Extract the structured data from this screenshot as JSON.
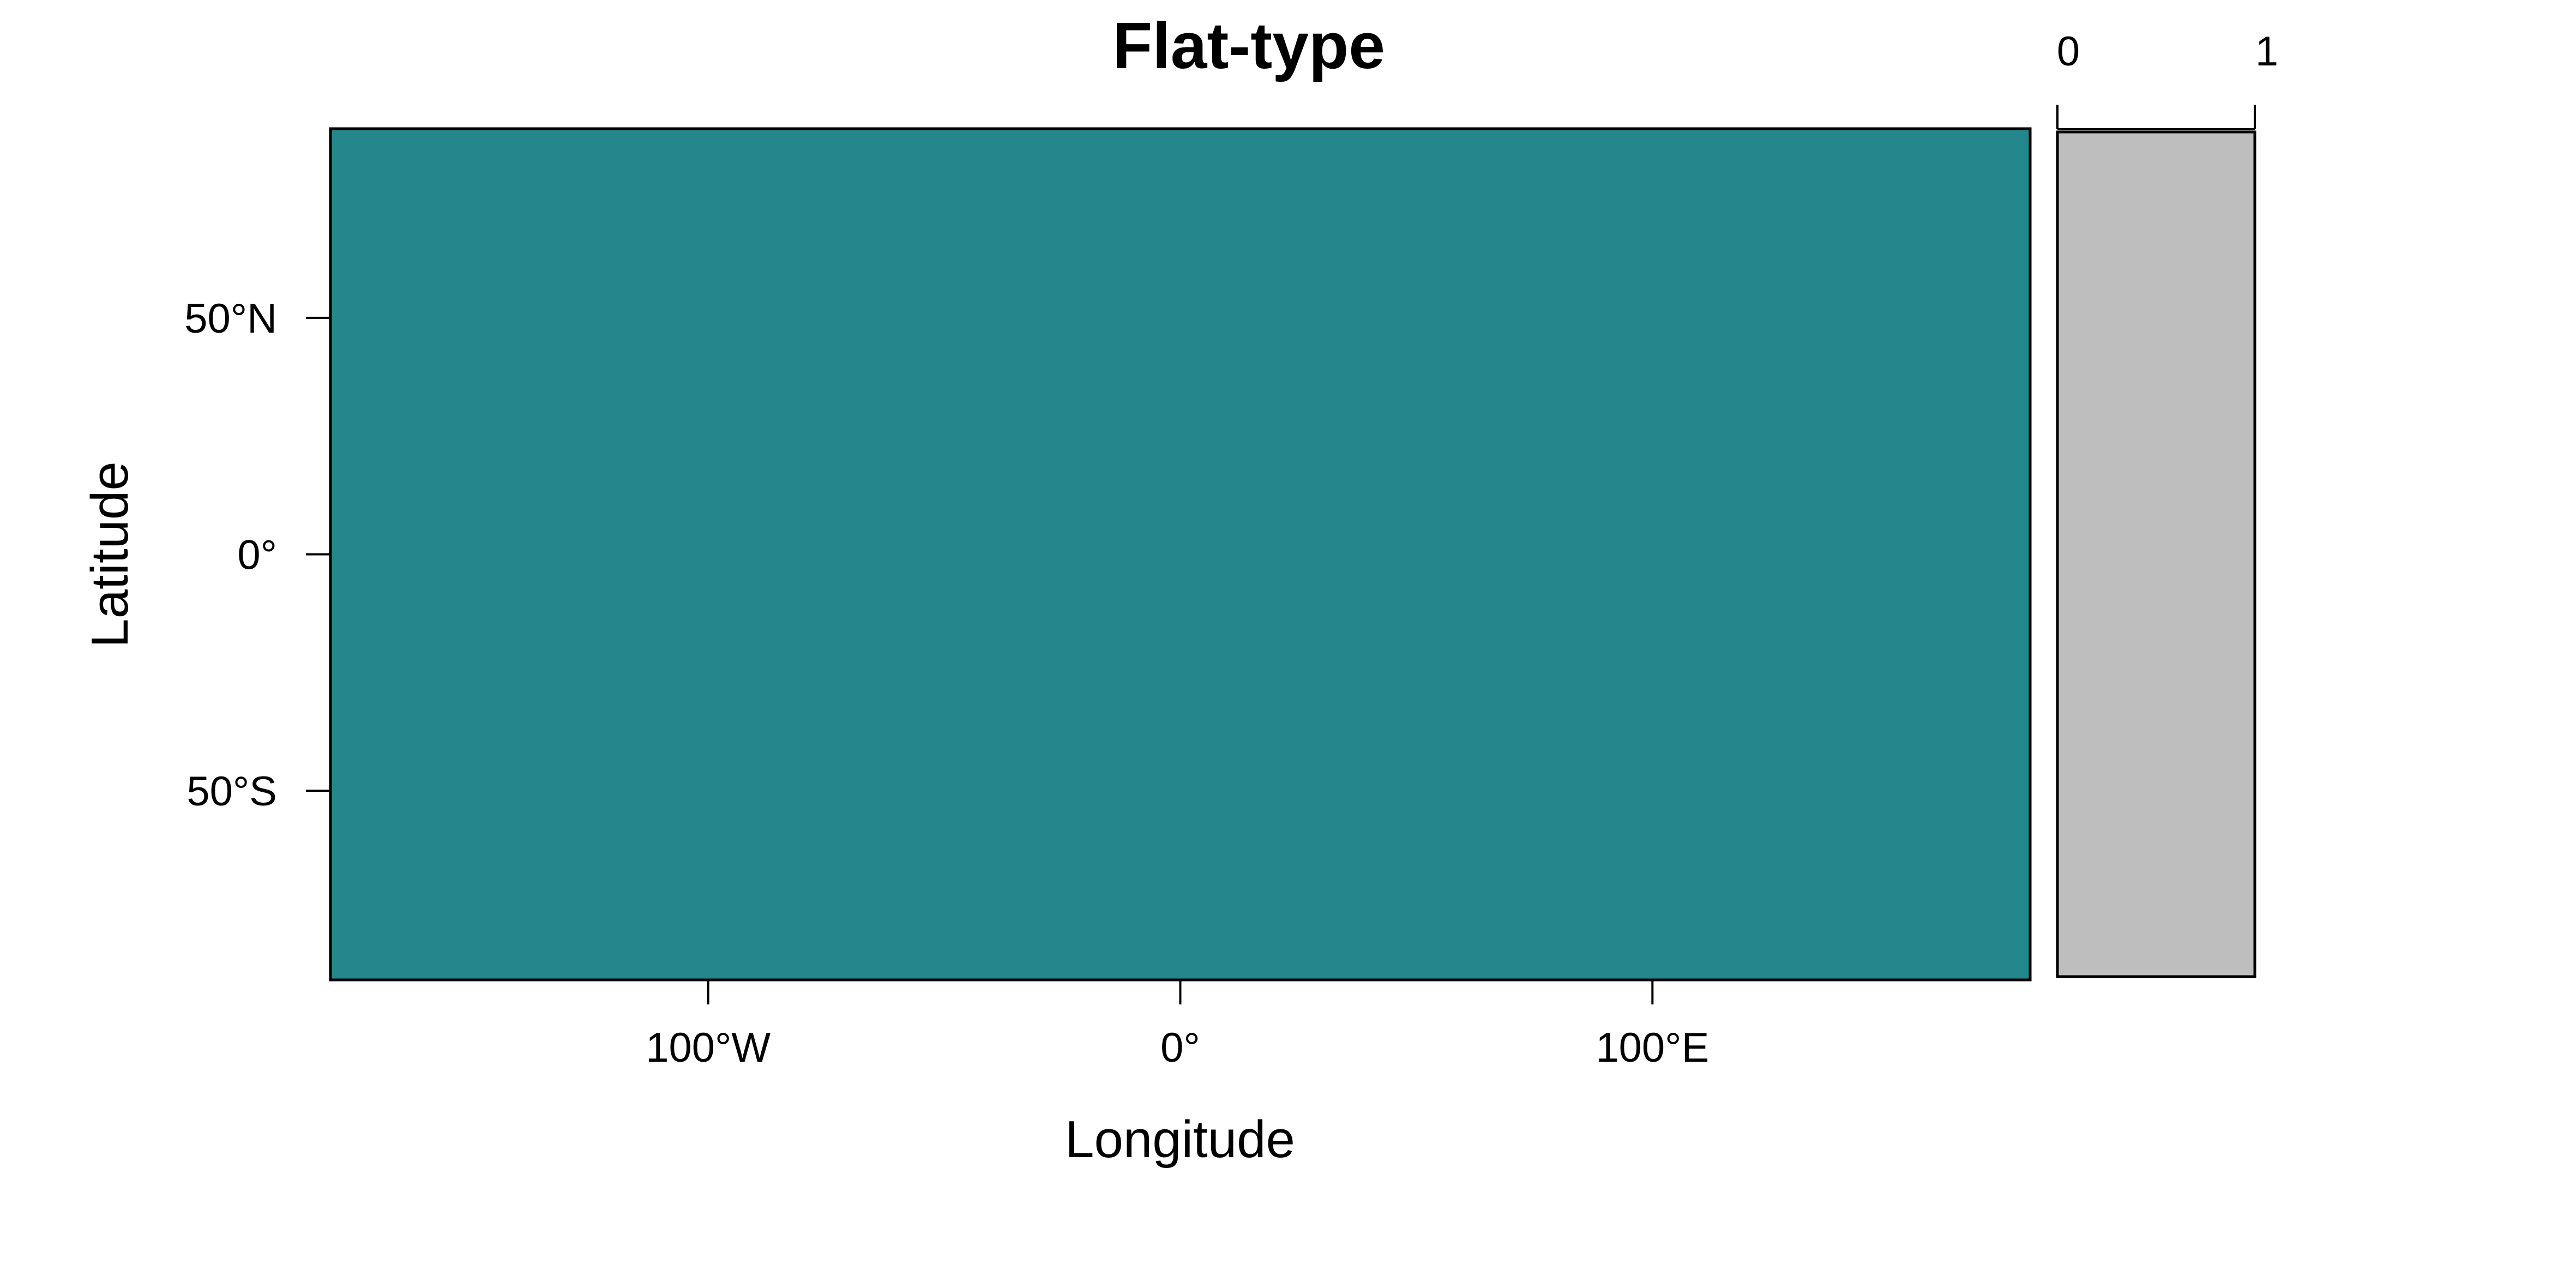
{
  "chart_data": {
    "type": "heatmap",
    "title": "Flat-type",
    "xlabel": "Longitude",
    "ylabel": "Latitude",
    "xlim": [
      -180,
      180
    ],
    "ylim": [
      -90,
      90
    ],
    "x_ticks": [
      {
        "value": -100,
        "label": "100°W"
      },
      {
        "value": 0,
        "label": "0°"
      },
      {
        "value": 100,
        "label": "100°E"
      }
    ],
    "y_ticks": [
      {
        "value": 50,
        "label": "50°N"
      },
      {
        "value": 0,
        "label": "0°"
      },
      {
        "value": -50,
        "label": "50°S"
      }
    ],
    "field": {
      "description_value": "uniform",
      "value": 0.5,
      "color": "#24878b"
    },
    "legend": {
      "placement": "right",
      "range": [
        0,
        1
      ],
      "ticks": [
        {
          "value": 0,
          "label": "0"
        },
        {
          "value": 1,
          "label": "1"
        }
      ],
      "color": "#bebebe"
    },
    "grid": false
  }
}
